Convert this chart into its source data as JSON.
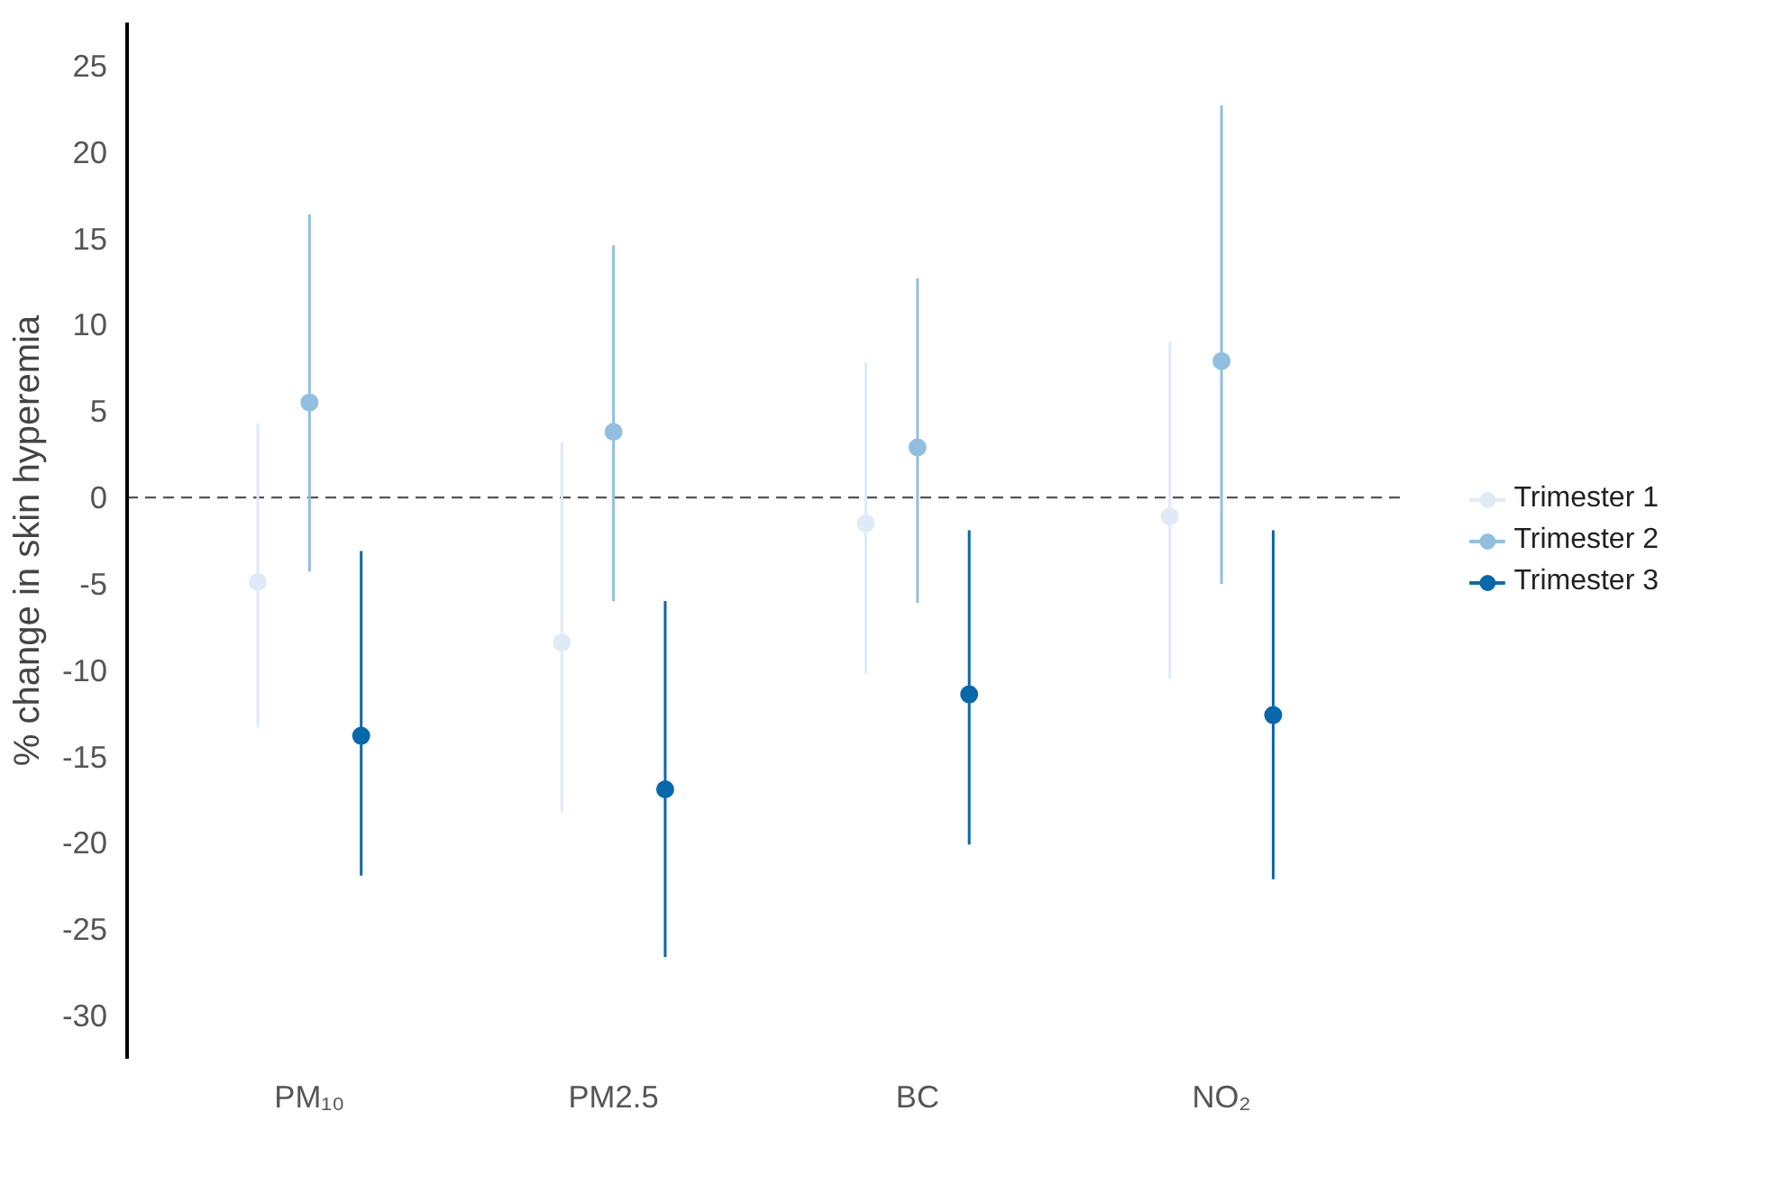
{
  "chart_data": {
    "type": "scatter",
    "ylabel": "% change in skin hyperemia",
    "categories": [
      "PM₁₀",
      "PM2.5",
      "BC",
      "NO₂"
    ],
    "series": [
      {
        "name": "Trimester 1",
        "color": "#deebf7",
        "values": [
          -4.9,
          -8.4,
          -1.5,
          -1.1
        ],
        "errors": [
          [
            -13.3,
            4.3
          ],
          [
            -18.2,
            3.2
          ],
          [
            -10.2,
            7.8
          ],
          [
            -10.5,
            9.0
          ]
        ]
      },
      {
        "name": "Trimester 2",
        "color": "#92bfdf",
        "values": [
          5.5,
          3.8,
          2.9,
          7.9
        ],
        "errors": [
          [
            -4.3,
            16.4
          ],
          [
            -6.0,
            14.6
          ],
          [
            -6.1,
            12.7
          ],
          [
            -5.0,
            22.7
          ]
        ]
      },
      {
        "name": "Trimester 3",
        "color": "#0868ac",
        "values": [
          -13.8,
          -16.9,
          -11.4,
          -12.6
        ],
        "errors": [
          [
            -21.9,
            -3.1
          ],
          [
            -26.6,
            -6.0
          ],
          [
            -20.1,
            -1.9
          ],
          [
            -22.1,
            -1.9
          ]
        ]
      }
    ],
    "ylim": [
      -32.5,
      27.5
    ],
    "yticks": [
      -30,
      -25,
      -20,
      -15,
      -10,
      -5,
      0,
      5,
      10,
      15,
      20,
      25
    ],
    "ref_lines": [
      {
        "axis": "y",
        "value": 0,
        "label": null,
        "color": "#555555",
        "line_style": "dashed"
      }
    ],
    "grid": false,
    "legend": "right",
    "marker": "circle"
  }
}
